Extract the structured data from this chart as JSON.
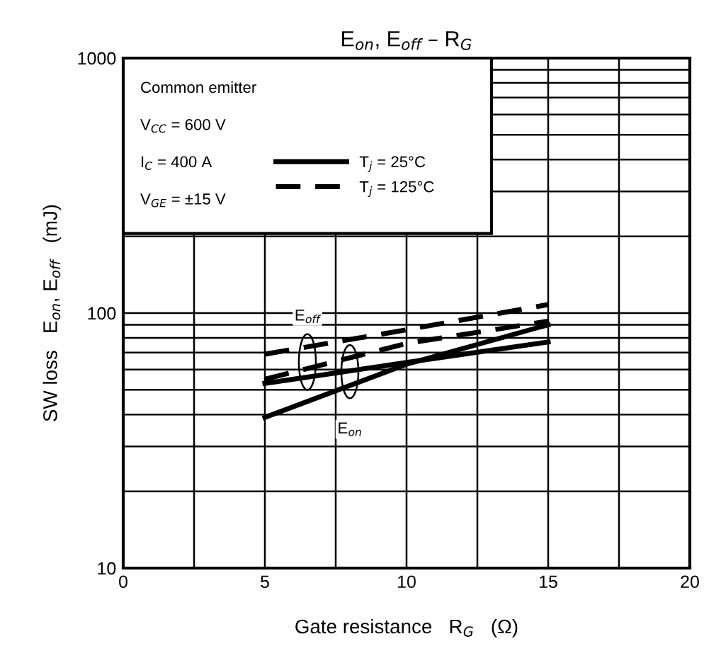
{
  "chart_data": {
    "type": "line",
    "title": "E$_{on}$, E$_{off}$ – R$_{G}$",
    "xlabel": "Gate resistance   R$_{G}$   (Ω)",
    "ylabel": "SW loss   E$_{on}$, E$_{off}$   (mJ)",
    "x": [
      5,
      10,
      15
    ],
    "series": [
      {
        "name": "T$_{j}$ = 25°C",
        "color": "#000000",
        "line_style": "solid",
        "values": [
          39,
          63,
          90
        ]
      },
      {
        "color": "#000000",
        "line_style": "solid",
        "values": [
          53,
          64,
          77
        ]
      },
      {
        "name": "T$_{j}$ = 125°C",
        "color": "#000000",
        "line_style": "dashed",
        "values": [
          55,
          76,
          93
        ]
      },
      {
        "color": "#000000",
        "line_style": "dashed",
        "values": [
          69,
          86,
          108
        ]
      }
    ],
    "log": "y",
    "xlim": [
      0,
      20
    ],
    "ylim": [
      10,
      1000
    ],
    "xticks": [
      0,
      {
        "value": 2.5,
        "label": null
      },
      5,
      {
        "value": 7.5,
        "label": null
      },
      10,
      {
        "value": 12.5,
        "label": null
      },
      15,
      {
        "value": 17.5,
        "label": null
      },
      20
    ],
    "yticks": [
      10,
      {
        "value": 20,
        "label": null
      },
      {
        "value": 30,
        "label": null
      },
      {
        "value": 40,
        "label": null
      },
      {
        "value": 50,
        "label": null
      },
      {
        "value": 60,
        "label": null
      },
      {
        "value": 70,
        "label": null
      },
      {
        "value": 80,
        "label": null
      },
      {
        "value": 90,
        "label": null
      },
      100,
      {
        "value": 200,
        "label": null
      },
      {
        "value": 300,
        "label": null
      },
      {
        "value": 400,
        "label": null
      },
      {
        "value": 500,
        "label": null
      },
      {
        "value": 600,
        "label": null
      },
      {
        "value": 700,
        "label": null
      },
      {
        "value": 800,
        "label": null
      },
      {
        "value": 900,
        "label": null
      },
      1000
    ],
    "grid": true,
    "legend": "top left",
    "annotations": [
      "Common emitter",
      "V$_{CC}$ = 600 V",
      "I$_{C}$ = 400 A",
      "V$_{GE}$ = ±15 V",
      {
        "text": "E$_{off}$",
        "x": 6.5,
        "y": 97
      },
      {
        "text": "E$_{on}$",
        "x": 8,
        "y": 35
      }
    ]
  }
}
